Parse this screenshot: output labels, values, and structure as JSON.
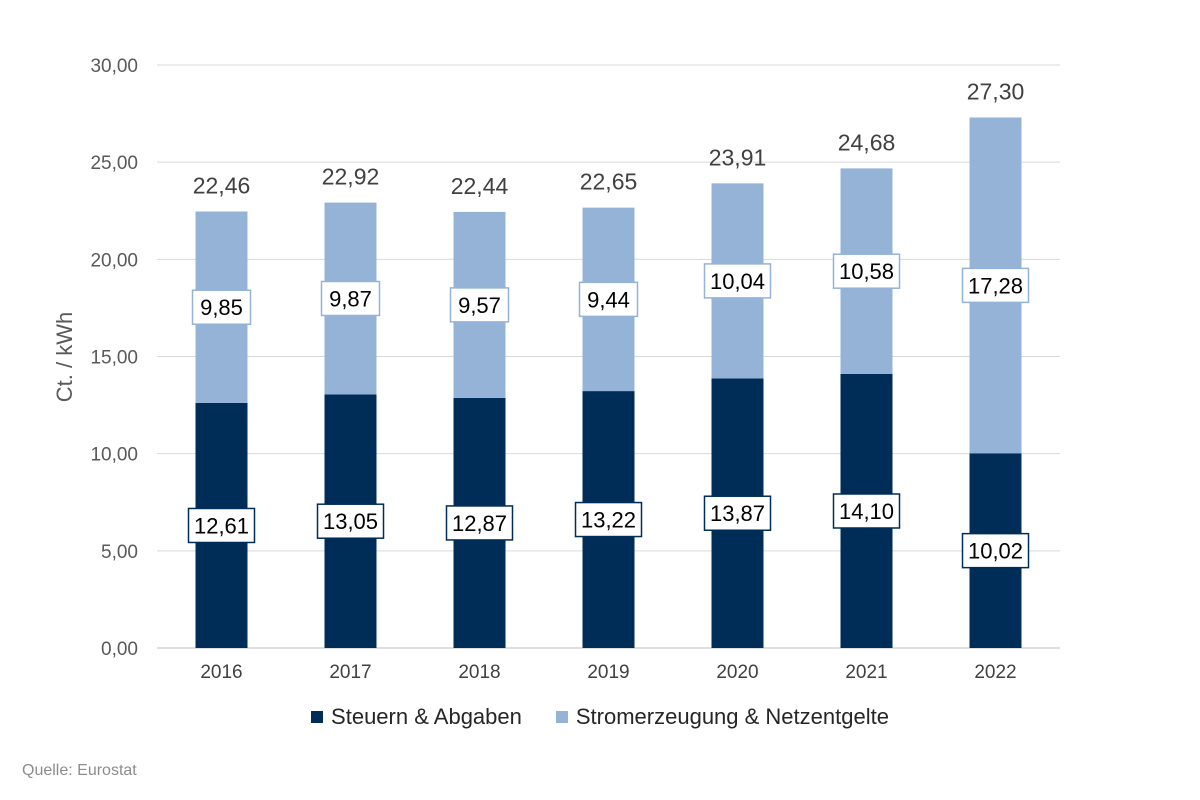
{
  "chart_data": {
    "type": "bar",
    "stacked": true,
    "categories": [
      "2016",
      "2017",
      "2018",
      "2019",
      "2020",
      "2021",
      "2022"
    ],
    "series": [
      {
        "name": "Steuern & Abgaben",
        "color": "#002D57",
        "values": [
          12.61,
          13.05,
          12.87,
          13.22,
          13.87,
          14.1,
          10.02
        ],
        "labels": [
          "12,61",
          "13,05",
          "12,87",
          "13,22",
          "13,87",
          "14,10",
          "10,02"
        ]
      },
      {
        "name": "Stromerzeugung & Netzentgelte",
        "color": "#95B3D7",
        "values": [
          9.85,
          9.87,
          9.57,
          9.44,
          10.04,
          10.58,
          17.28
        ],
        "labels": [
          "9,85",
          "9,87",
          "9,57",
          "9,44",
          "10,04",
          "10,58",
          "17,28"
        ]
      }
    ],
    "totals": [
      22.46,
      22.92,
      22.44,
      22.65,
      23.91,
      24.68,
      27.3
    ],
    "total_labels": [
      "22,46",
      "22,92",
      "22,44",
      "22,65",
      "23,91",
      "24,68",
      "27,30"
    ],
    "ylabel": "Ct. / kWh",
    "ylim": [
      0,
      30
    ],
    "yticks": [
      0,
      5,
      10,
      15,
      20,
      25,
      30
    ],
    "ytick_labels": [
      "0,00",
      "5,00",
      "10,00",
      "15,00",
      "20,00",
      "25,00",
      "30,00"
    ],
    "grid": true,
    "legend_position": "bottom"
  },
  "source": "Quelle: Eurostat"
}
